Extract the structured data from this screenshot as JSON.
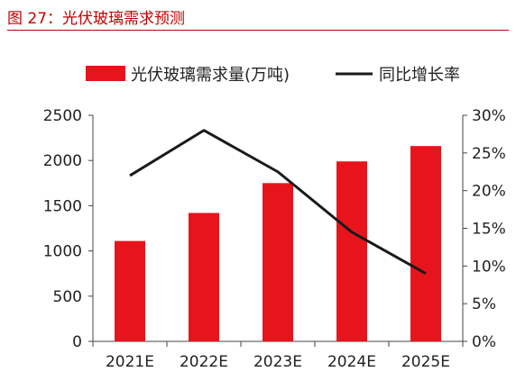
{
  "figure_title": "图 27：光伏玻璃需求预测",
  "chart_data": {
    "type": "bar",
    "categories": [
      "2021E",
      "2022E",
      "2023E",
      "2024E",
      "2025E"
    ],
    "series": [
      {
        "name": "光伏玻璃需求量(万吨)",
        "type": "bar",
        "axis": "left",
        "values": [
          1110,
          1420,
          1750,
          1990,
          2160
        ],
        "color": "#e8141c"
      },
      {
        "name": "同比增长率",
        "type": "line",
        "axis": "right",
        "values": [
          0.22,
          0.28,
          0.225,
          0.145,
          0.09
        ],
        "color": "#1a1a1a"
      }
    ],
    "left_axis": {
      "ylim": [
        0,
        2500
      ],
      "ticks": [
        "0",
        "500",
        "1000",
        "1500",
        "2000",
        "2500"
      ]
    },
    "right_axis": {
      "ylim": [
        0,
        0.3
      ],
      "ticks": [
        "0%",
        "5%",
        "10%",
        "15%",
        "20%",
        "25%",
        "30%"
      ]
    },
    "legend_placement": "top",
    "grid": false
  }
}
